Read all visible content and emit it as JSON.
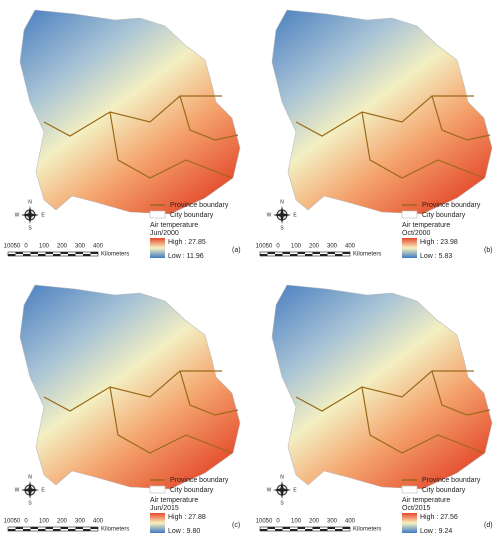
{
  "legend": {
    "province": "Province boundary",
    "city": "City boundary",
    "title": "Air temperature",
    "scale_labels": [
      "10050",
      "0",
      "100",
      "200",
      "300",
      "400"
    ],
    "scale_unit": "Kilometers",
    "compass": [
      "N",
      "S",
      "E",
      "W"
    ]
  },
  "panels": [
    {
      "date": "Jun/2000",
      "high": "High : 27.85",
      "low": "Low : 11.96",
      "label": "(a)"
    },
    {
      "date": "Oct/2000",
      "high": "High : 23.98",
      "low": "Low : 5.83",
      "label": "(b)"
    },
    {
      "date": "Jun/2015",
      "high": "High : 27.88",
      "low": "Low : 9.80",
      "label": "(c)"
    },
    {
      "date": "Oct/2015",
      "high": "High : 27.56",
      "low": "Low : 9.24",
      "label": "(d)"
    }
  ]
}
